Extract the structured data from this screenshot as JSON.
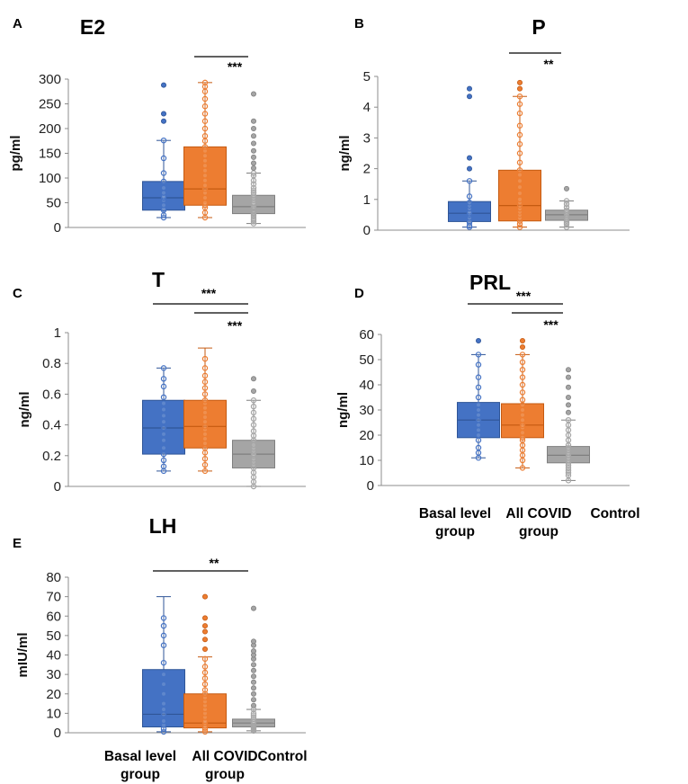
{
  "figure": {
    "groups": [
      {
        "name": "Basal level group",
        "lines": [
          "Basal level",
          "group"
        ],
        "color": "#4472C4",
        "edge": "#2F5597"
      },
      {
        "name": "All COVID group",
        "lines": [
          "All COVID",
          "group"
        ],
        "color": "#ED7D31",
        "edge": "#C55A11"
      },
      {
        "name": "Control",
        "lines": [
          "Control"
        ],
        "color": "#A5A5A5",
        "edge": "#7F7F7F"
      }
    ]
  },
  "chart_data": [
    {
      "panel": "A",
      "title": "E2",
      "type": "box",
      "ylabel": "pg/ml",
      "ylim": [
        0,
        300
      ],
      "yticks": [
        {
          "v": 0,
          "l": "0"
        },
        {
          "v": 50,
          "l": "50"
        },
        {
          "v": 100,
          "l": "100"
        },
        {
          "v": 150,
          "l": "150"
        },
        {
          "v": 200,
          "l": "200"
        },
        {
          "v": 250,
          "l": "250"
        },
        {
          "v": 300,
          "l": "300"
        }
      ],
      "boxes": [
        {
          "group": "Basal level group",
          "q1": 35,
          "median": 60,
          "q3": 93,
          "whisker_low": 20,
          "whisker_high": 176,
          "points": [
            20,
            25,
            35,
            38,
            45,
            55,
            60,
            63,
            70,
            80,
            93,
            110,
            140,
            176,
            215,
            230,
            288
          ]
        },
        {
          "group": "All COVID group",
          "q1": 45,
          "median": 78,
          "q3": 163,
          "whisker_low": 20,
          "whisker_high": 293,
          "points": [
            20,
            30,
            40,
            45,
            50,
            60,
            70,
            78,
            85,
            95,
            105,
            115,
            125,
            135,
            145,
            155,
            163,
            175,
            185,
            200,
            215,
            230,
            245,
            260,
            275,
            285,
            293
          ]
        },
        {
          "group": "Control",
          "q1": 28,
          "median": 42,
          "q3": 65,
          "whisker_low": 8,
          "whisker_high": 110,
          "points": [
            8,
            12,
            15,
            18,
            22,
            25,
            28,
            30,
            33,
            35,
            38,
            40,
            42,
            45,
            48,
            50,
            55,
            60,
            65,
            70,
            75,
            80,
            88,
            95,
            105,
            110,
            120,
            130,
            142,
            155,
            170,
            185,
            200,
            215,
            270
          ]
        }
      ],
      "brackets": [
        {
          "from": "All COVID group",
          "to": "Control",
          "label": "***"
        }
      ]
    },
    {
      "panel": "B",
      "title": "P",
      "type": "box",
      "ylabel": "ng/ml",
      "ylim": [
        0,
        5
      ],
      "yticks": [
        {
          "v": 0,
          "l": "0"
        },
        {
          "v": 1,
          "l": "1"
        },
        {
          "v": 2,
          "l": "2"
        },
        {
          "v": 3,
          "l": "3"
        },
        {
          "v": 4,
          "l": "4"
        },
        {
          "v": 5,
          "l": "5"
        }
      ],
      "boxes": [
        {
          "group": "Basal level group",
          "q1": 0.28,
          "median": 0.55,
          "q3": 0.93,
          "whisker_low": 0.1,
          "whisker_high": 1.6,
          "points": [
            0.1,
            0.15,
            0.25,
            0.3,
            0.4,
            0.5,
            0.55,
            0.6,
            0.7,
            0.8,
            0.9,
            1.1,
            1.6,
            2.0,
            2.35,
            4.35,
            4.6
          ]
        },
        {
          "group": "All COVID group",
          "q1": 0.3,
          "median": 0.8,
          "q3": 1.95,
          "whisker_low": 0.1,
          "whisker_high": 4.35,
          "points": [
            0.1,
            0.2,
            0.3,
            0.4,
            0.5,
            0.6,
            0.7,
            0.8,
            0.9,
            1.0,
            1.2,
            1.4,
            1.6,
            1.8,
            1.95,
            2.2,
            2.5,
            2.8,
            3.1,
            3.4,
            3.8,
            4.1,
            4.35,
            4.6,
            4.8
          ]
        },
        {
          "group": "Control",
          "q1": 0.32,
          "median": 0.5,
          "q3": 0.65,
          "whisker_low": 0.1,
          "whisker_high": 0.95,
          "points": [
            0.1,
            0.2,
            0.25,
            0.3,
            0.35,
            0.4,
            0.45,
            0.5,
            0.55,
            0.6,
            0.65,
            0.75,
            0.85,
            0.95,
            1.35
          ]
        }
      ],
      "brackets": [
        {
          "from": "All COVID group",
          "to": "Control",
          "label": "**"
        }
      ]
    },
    {
      "panel": "C",
      "title": "T",
      "type": "box",
      "ylabel": "ng/ml",
      "ylim": [
        0,
        1
      ],
      "yticks": [
        {
          "v": 0,
          "l": "0"
        },
        {
          "v": 0.2,
          "l": "0.2"
        },
        {
          "v": 0.4,
          "l": "0.4"
        },
        {
          "v": 0.6,
          "l": "0.6"
        },
        {
          "v": 0.8,
          "l": "0.8"
        },
        {
          "v": 1,
          "l": "1"
        }
      ],
      "boxes": [
        {
          "group": "Basal level group",
          "q1": 0.21,
          "median": 0.38,
          "q3": 0.56,
          "whisker_low": 0.1,
          "whisker_high": 0.77,
          "points": [
            0.1,
            0.13,
            0.17,
            0.21,
            0.25,
            0.3,
            0.34,
            0.38,
            0.42,
            0.46,
            0.5,
            0.54,
            0.58,
            0.65,
            0.7,
            0.77
          ]
        },
        {
          "group": "All COVID group",
          "q1": 0.25,
          "median": 0.39,
          "q3": 0.56,
          "whisker_low": 0.1,
          "whisker_high": 0.9,
          "points": [
            0.1,
            0.14,
            0.18,
            0.22,
            0.25,
            0.28,
            0.31,
            0.34,
            0.37,
            0.39,
            0.42,
            0.45,
            0.48,
            0.51,
            0.54,
            0.56,
            0.6,
            0.64,
            0.68,
            0.72,
            0.77,
            0.83
          ]
        },
        {
          "group": "Control",
          "q1": 0.12,
          "median": 0.21,
          "q3": 0.3,
          "whisker_low": 0.0,
          "whisker_high": 0.56,
          "points": [
            0.0,
            0.03,
            0.06,
            0.09,
            0.12,
            0.14,
            0.16,
            0.18,
            0.2,
            0.21,
            0.23,
            0.25,
            0.27,
            0.3,
            0.33,
            0.36,
            0.4,
            0.44,
            0.48,
            0.52,
            0.56,
            0.62,
            0.7
          ]
        }
      ],
      "brackets": [
        {
          "from": "Basal level group",
          "to": "Control",
          "label": "***"
        },
        {
          "from": "All COVID group",
          "to": "Control",
          "label": "***"
        }
      ]
    },
    {
      "panel": "D",
      "title": "PRL",
      "type": "box",
      "ylabel": "ng/ml",
      "ylim": [
        0,
        60
      ],
      "yticks": [
        {
          "v": 0,
          "l": "0"
        },
        {
          "v": 10,
          "l": "10"
        },
        {
          "v": 20,
          "l": "20"
        },
        {
          "v": 30,
          "l": "30"
        },
        {
          "v": 40,
          "l": "40"
        },
        {
          "v": 50,
          "l": "50"
        },
        {
          "v": 60,
          "l": "60"
        }
      ],
      "boxes": [
        {
          "group": "Basal level group",
          "q1": 19,
          "median": 26,
          "q3": 33,
          "whisker_low": 11,
          "whisker_high": 52,
          "points": [
            11,
            13,
            15,
            18,
            20,
            22,
            24,
            26,
            28,
            30,
            32,
            35,
            39,
            43,
            48,
            52,
            57.5
          ]
        },
        {
          "group": "All COVID group",
          "q1": 19,
          "median": 24,
          "q3": 32.5,
          "whisker_low": 7,
          "whisker_high": 52,
          "points": [
            7,
            10,
            12,
            14,
            16,
            18,
            19,
            21,
            23,
            24,
            26,
            28,
            30,
            32,
            34,
            37,
            40,
            43,
            46,
            49,
            52,
            55,
            57.5
          ]
        },
        {
          "group": "Control",
          "q1": 9,
          "median": 12,
          "q3": 15.5,
          "whisker_low": 2,
          "whisker_high": 26,
          "points": [
            2,
            4,
            5,
            6,
            7,
            8,
            9,
            10,
            11,
            12,
            13,
            14,
            15,
            16,
            18,
            20,
            22,
            24,
            26,
            29,
            32,
            35,
            39,
            43,
            46
          ]
        }
      ],
      "brackets": [
        {
          "from": "Basal level group",
          "to": "Control",
          "label": "***"
        },
        {
          "from": "All COVID group",
          "to": "Control",
          "label": "***"
        }
      ]
    },
    {
      "panel": "E",
      "title": "LH",
      "type": "box",
      "ylabel": "mIU/ml",
      "ylim": [
        0,
        80
      ],
      "yticks": [
        {
          "v": 0,
          "l": "0"
        },
        {
          "v": 10,
          "l": "10"
        },
        {
          "v": 20,
          "l": "20"
        },
        {
          "v": 30,
          "l": "30"
        },
        {
          "v": 40,
          "l": "40"
        },
        {
          "v": 50,
          "l": "50"
        },
        {
          "v": 60,
          "l": "60"
        },
        {
          "v": 70,
          "l": "70"
        },
        {
          "v": 80,
          "l": "80"
        }
      ],
      "boxes": [
        {
          "group": "Basal level group",
          "q1": 3,
          "median": 9.5,
          "q3": 32.5,
          "whisker_low": 0.5,
          "whisker_high": 70,
          "points": [
            0.5,
            2,
            4,
            6,
            9.5,
            12,
            15,
            20,
            25,
            30,
            36,
            45,
            50,
            55,
            59
          ]
        },
        {
          "group": "All COVID group",
          "q1": 2.5,
          "median": 5,
          "q3": 20,
          "whisker_low": 0.5,
          "whisker_high": 39,
          "points": [
            0.5,
            1.5,
            2.5,
            3.5,
            5,
            6,
            8,
            10,
            12,
            14,
            16,
            18,
            20,
            22,
            25,
            28,
            31,
            34,
            38,
            43,
            48,
            52,
            55,
            59,
            70
          ]
        },
        {
          "group": "Control",
          "q1": 3,
          "median": 5,
          "q3": 7,
          "whisker_low": 1,
          "whisker_high": 12,
          "points": [
            1,
            1.5,
            2,
            2.5,
            3,
            3.5,
            4,
            4.5,
            5,
            5.5,
            6,
            7,
            8,
            9,
            10,
            12,
            14,
            17,
            20,
            23,
            26,
            29,
            32,
            35,
            38,
            40,
            42,
            45,
            47,
            64
          ]
        }
      ],
      "brackets": [
        {
          "from": "Basal level group",
          "to": "Control",
          "label": "**"
        }
      ]
    }
  ]
}
